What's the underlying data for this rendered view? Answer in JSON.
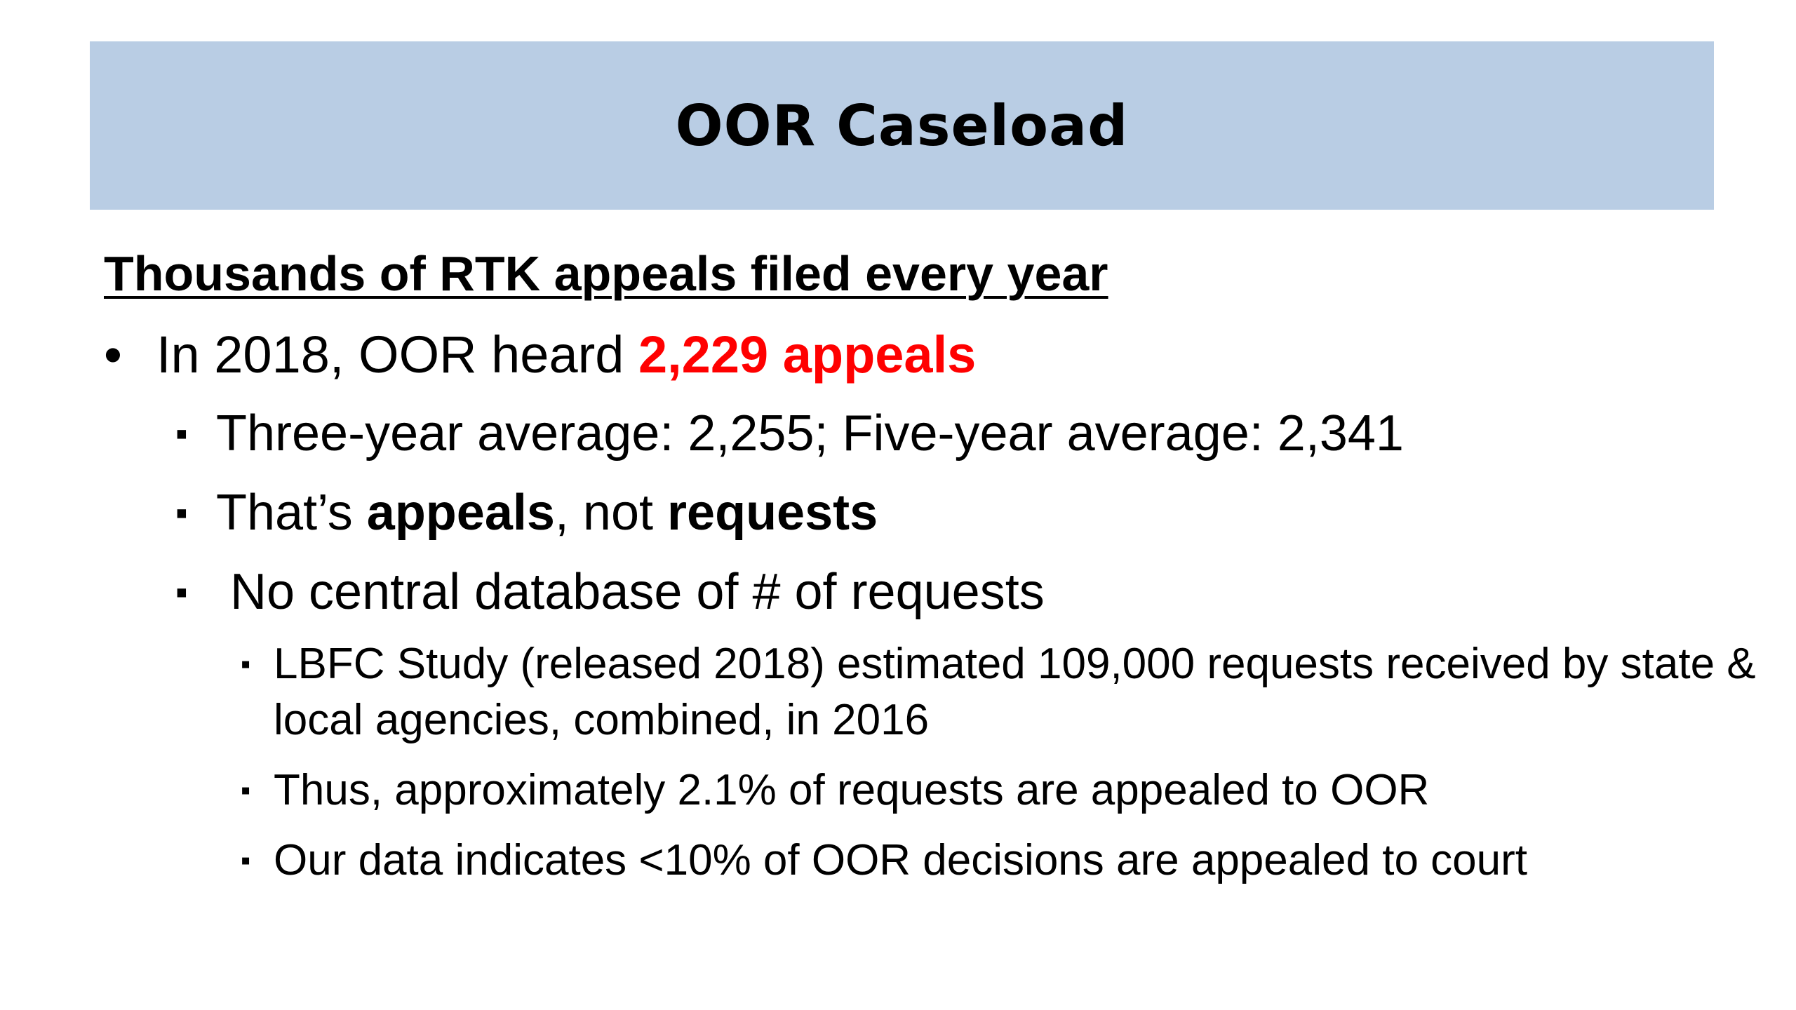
{
  "slide": {
    "title": "OOR Caseload",
    "title_bar_color": "#b9cde4",
    "subheading": "Thousands of RTK appeals filed every year",
    "bullets": {
      "main": {
        "marker": "•",
        "prefix": "In 2018, OOR heard ",
        "highlight": "2,229 appeals",
        "highlight_color": "#ff0000"
      },
      "sub1": {
        "marker": "▪",
        "text": "Three-year average: 2,255; Five-year average: 2,341"
      },
      "sub2": {
        "marker": "▪",
        "prefix": "That’s ",
        "bold1": "appeals",
        "middle": ", not ",
        "bold2": "requests"
      },
      "sub3": {
        "marker": "▪",
        "text": "No central database of # of requests"
      },
      "sub3_items": [
        {
          "marker": "▪",
          "text": "LBFC Study (released 2018) estimated 109,000 requests received by state & local agencies, combined, in 2016"
        },
        {
          "marker": "▪",
          "text": "Thus, approximately 2.1% of requests are appealed to OOR"
        },
        {
          "marker": "▪",
          "text": "Our data indicates <10% of OOR decisions are appealed to court"
        }
      ]
    }
  }
}
